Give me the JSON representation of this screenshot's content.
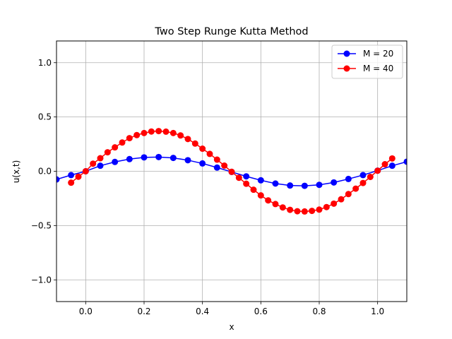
{
  "chart_data": {
    "type": "line",
    "title": "Two Step Runge Kutta Method",
    "xlabel": "x",
    "ylabel": "u(x,t)",
    "xlim": [
      -0.1,
      1.1
    ],
    "ylim": [
      -1.2,
      1.2
    ],
    "xticks": [
      0.0,
      0.2,
      0.4,
      0.6,
      0.8,
      1.0
    ],
    "xtick_labels": [
      "0.0",
      "0.2",
      "0.4",
      "0.6",
      "0.8",
      "1.0"
    ],
    "yticks": [
      -1.0,
      -0.5,
      0.0,
      0.5,
      1.0
    ],
    "ytick_labels": [
      "−1.0",
      "−0.5",
      "0.0",
      "0.5",
      "1.0"
    ],
    "grid": true,
    "legend_position": "top-right",
    "series": [
      {
        "name": "M = 20",
        "color": "#0000ff",
        "x": [
          -0.1,
          -0.05,
          0.0,
          0.05,
          0.1,
          0.15,
          0.2,
          0.25,
          0.3,
          0.35,
          0.4,
          0.45,
          0.5,
          0.55,
          0.6,
          0.65,
          0.7,
          0.75,
          0.8,
          0.85,
          0.9,
          0.95,
          1.0,
          1.05,
          1.1
        ],
        "y": [
          -0.075,
          -0.035,
          0.0,
          0.051,
          0.086,
          0.112,
          0.128,
          0.131,
          0.123,
          0.102,
          0.072,
          0.034,
          -0.006,
          -0.047,
          -0.083,
          -0.113,
          -0.131,
          -0.134,
          -0.125,
          -0.103,
          -0.071,
          -0.035,
          0.006,
          0.051,
          0.088
        ]
      },
      {
        "name": "M = 40",
        "color": "#ff0000",
        "x": [
          -0.05,
          -0.025,
          0.0,
          0.025,
          0.05,
          0.075,
          0.1,
          0.125,
          0.15,
          0.175,
          0.2,
          0.225,
          0.25,
          0.275,
          0.3,
          0.325,
          0.35,
          0.375,
          0.4,
          0.425,
          0.45,
          0.475,
          0.5,
          0.525,
          0.55,
          0.575,
          0.6,
          0.625,
          0.65,
          0.675,
          0.7,
          0.725,
          0.75,
          0.775,
          0.8,
          0.825,
          0.85,
          0.875,
          0.9,
          0.925,
          0.95,
          0.975,
          1.0,
          1.025,
          1.05
        ],
        "y": [
          -0.105,
          -0.05,
          0.0,
          0.07,
          0.12,
          0.175,
          0.22,
          0.265,
          0.305,
          0.333,
          0.352,
          0.366,
          0.37,
          0.365,
          0.352,
          0.33,
          0.297,
          0.255,
          0.208,
          0.16,
          0.107,
          0.052,
          -0.005,
          -0.06,
          -0.115,
          -0.17,
          -0.222,
          -0.268,
          -0.302,
          -0.333,
          -0.355,
          -0.368,
          -0.37,
          -0.365,
          -0.353,
          -0.33,
          -0.298,
          -0.258,
          -0.21,
          -0.16,
          -0.108,
          -0.052,
          0.005,
          0.065,
          0.118
        ]
      }
    ]
  }
}
